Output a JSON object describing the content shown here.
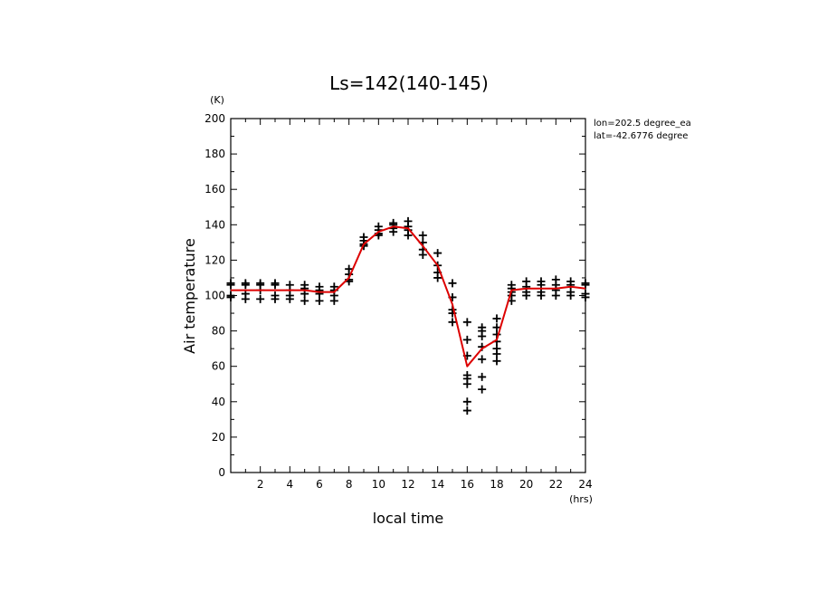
{
  "chart_data": {
    "type": "scatter",
    "title": "Ls=142(140-145)",
    "xlabel": "local time",
    "ylabel": "Air temperature",
    "x_unit": "(hrs)",
    "y_unit": "(K)",
    "xlim": [
      0,
      24
    ],
    "ylim": [
      0,
      200
    ],
    "xticks": [
      2,
      4,
      6,
      8,
      10,
      12,
      14,
      16,
      18,
      20,
      22,
      24
    ],
    "yticks": [
      0,
      20,
      40,
      60,
      80,
      100,
      120,
      140,
      160,
      180,
      200
    ],
    "annotations": [
      "lon=202.5 degree_ea",
      "lat=-42.6776 degree"
    ],
    "grid": false,
    "colors": {
      "line": "#dd0000",
      "points": "#000000"
    },
    "series": [
      {
        "marker": "plus",
        "points": [
          [
            0,
            107
          ],
          [
            0,
            106
          ],
          [
            0,
            100
          ],
          [
            0,
            99
          ],
          [
            1,
            107
          ],
          [
            1,
            106
          ],
          [
            1,
            101
          ],
          [
            1,
            98
          ],
          [
            2,
            107
          ],
          [
            2,
            106
          ],
          [
            2,
            103
          ],
          [
            2,
            98
          ],
          [
            3,
            107
          ],
          [
            3,
            106
          ],
          [
            3,
            100
          ],
          [
            3,
            98
          ],
          [
            4,
            106
          ],
          [
            4,
            103
          ],
          [
            4,
            100
          ],
          [
            4,
            98
          ],
          [
            5,
            106
          ],
          [
            5,
            104
          ],
          [
            5,
            101
          ],
          [
            5,
            97
          ],
          [
            6,
            105
          ],
          [
            6,
            103
          ],
          [
            6,
            101
          ],
          [
            6,
            97
          ],
          [
            7,
            105
          ],
          [
            7,
            103
          ],
          [
            7,
            100
          ],
          [
            7,
            97
          ],
          [
            8,
            115
          ],
          [
            8,
            112
          ],
          [
            8,
            109
          ],
          [
            8,
            108
          ],
          [
            9,
            133
          ],
          [
            9,
            131
          ],
          [
            9,
            129
          ],
          [
            9,
            128
          ],
          [
            10,
            139
          ],
          [
            10,
            137
          ],
          [
            10,
            135
          ],
          [
            10,
            134
          ],
          [
            11,
            141
          ],
          [
            11,
            140
          ],
          [
            11,
            138
          ],
          [
            11,
            136
          ],
          [
            12,
            142
          ],
          [
            12,
            139
          ],
          [
            12,
            137
          ],
          [
            12,
            134
          ],
          [
            13,
            134
          ],
          [
            13,
            130
          ],
          [
            13,
            126
          ],
          [
            13,
            123
          ],
          [
            14,
            124
          ],
          [
            14,
            117
          ],
          [
            14,
            113
          ],
          [
            14,
            110
          ],
          [
            15,
            107
          ],
          [
            15,
            99
          ],
          [
            15,
            92
          ],
          [
            15,
            90
          ],
          [
            15,
            85
          ],
          [
            16,
            85
          ],
          [
            16,
            75
          ],
          [
            16,
            66
          ],
          [
            16,
            55
          ],
          [
            16,
            53
          ],
          [
            16,
            50
          ],
          [
            16,
            40
          ],
          [
            16,
            35
          ],
          [
            17,
            82
          ],
          [
            17,
            80
          ],
          [
            17,
            77
          ],
          [
            17,
            71
          ],
          [
            17,
            64
          ],
          [
            17,
            54
          ],
          [
            17,
            47
          ],
          [
            18,
            87
          ],
          [
            18,
            82
          ],
          [
            18,
            78
          ],
          [
            18,
            74
          ],
          [
            18,
            70
          ],
          [
            18,
            67
          ],
          [
            18,
            63
          ],
          [
            19,
            106
          ],
          [
            19,
            104
          ],
          [
            19,
            102
          ],
          [
            19,
            100
          ],
          [
            19,
            97
          ],
          [
            20,
            108
          ],
          [
            20,
            105
          ],
          [
            20,
            102
          ],
          [
            20,
            100
          ],
          [
            21,
            108
          ],
          [
            21,
            106
          ],
          [
            21,
            102
          ],
          [
            21,
            100
          ],
          [
            22,
            109
          ],
          [
            22,
            106
          ],
          [
            22,
            103
          ],
          [
            22,
            100
          ],
          [
            23,
            108
          ],
          [
            23,
            106
          ],
          [
            23,
            102
          ],
          [
            23,
            100
          ],
          [
            24,
            107
          ],
          [
            24,
            106
          ],
          [
            24,
            101
          ],
          [
            24,
            99
          ]
        ]
      },
      {
        "marker": "line",
        "x": [
          0,
          1,
          2,
          3,
          4,
          5,
          6,
          7,
          8,
          9,
          10,
          11,
          12,
          13,
          14,
          15,
          16,
          17,
          18,
          19,
          20,
          21,
          22,
          23,
          24
        ],
        "y": [
          103,
          103,
          103,
          103,
          103,
          103,
          102,
          102,
          110,
          129,
          136,
          139,
          138,
          128,
          117,
          95,
          60,
          70,
          75,
          103,
          104,
          104,
          104,
          105,
          104
        ]
      }
    ]
  }
}
